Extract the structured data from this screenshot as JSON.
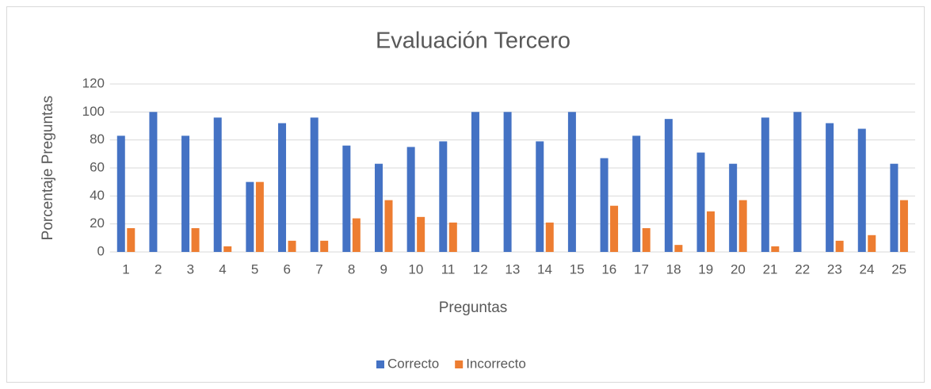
{
  "chart_data": {
    "type": "bar",
    "title": "Evaluación Tercero",
    "x_label": "Preguntas",
    "y_label": "Porcentaje Preguntas",
    "categories": [
      "1",
      "2",
      "3",
      "4",
      "5",
      "6",
      "7",
      "8",
      "9",
      "10",
      "11",
      "12",
      "13",
      "14",
      "15",
      "16",
      "17",
      "18",
      "19",
      "20",
      "21",
      "22",
      "23",
      "24",
      "25"
    ],
    "series": [
      {
        "name": "Correcto",
        "color": "#4472c4",
        "values": [
          83,
          100,
          83,
          96,
          50,
          92,
          96,
          76,
          63,
          75,
          79,
          100,
          100,
          79,
          100,
          67,
          83,
          95,
          71,
          63,
          96,
          100,
          92,
          88,
          63
        ]
      },
      {
        "name": "Incorrecto",
        "color": "#ed7d31",
        "values": [
          17,
          0,
          17,
          4,
          50,
          8,
          8,
          24,
          37,
          25,
          21,
          0,
          0,
          21,
          0,
          33,
          17,
          5,
          29,
          37,
          4,
          0,
          8,
          12,
          37
        ]
      }
    ],
    "ylim": [
      0,
      120
    ],
    "yticks": [
      0,
      20,
      40,
      60,
      80,
      100,
      120
    ],
    "grid": true,
    "legend": "bottom"
  }
}
